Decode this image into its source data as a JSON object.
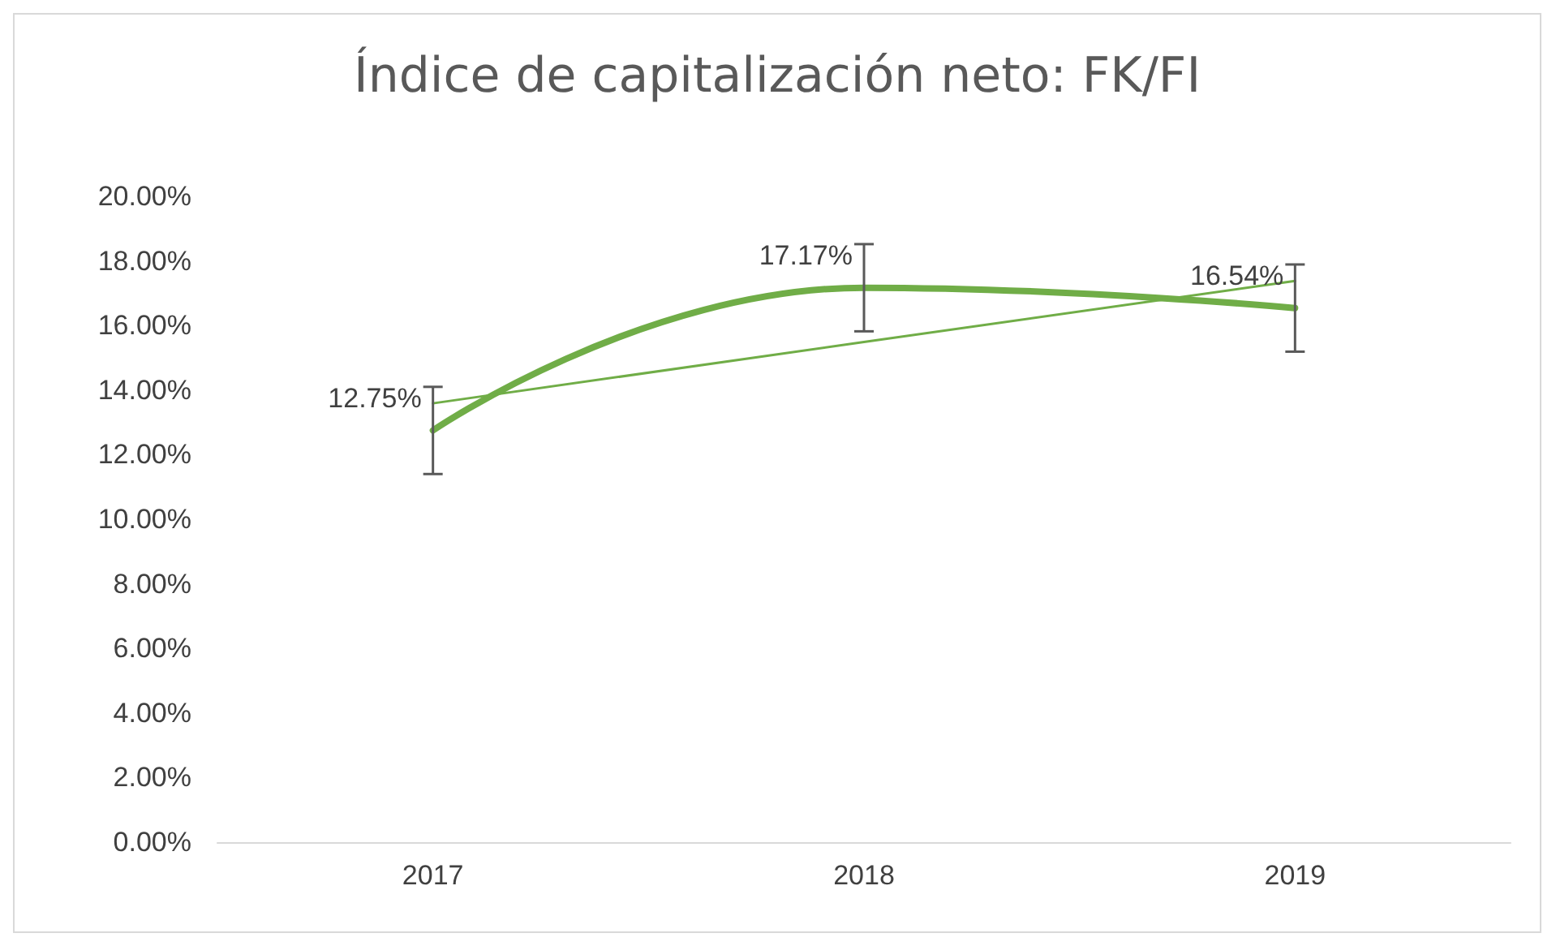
{
  "chart_data": {
    "type": "line",
    "title": "Índice de capitalización neto: FK/FI",
    "categories": [
      "2017",
      "2018",
      "2019"
    ],
    "series": [
      {
        "values": [
          12.75,
          17.17,
          16.54
        ],
        "color": "#70ad47",
        "errors": [
          1.35,
          1.35,
          1.35
        ],
        "value_labels": [
          "12.75%",
          "17.17%",
          "16.54%"
        ]
      },
      {
        "type": "line",
        "values": [
          13.59,
          15.49,
          17.38
        ],
        "color": "#70ad47"
      }
    ],
    "ylim": [
      0,
      20
    ],
    "yticks": [
      {
        "value": 0,
        "label": "0.00%"
      },
      {
        "value": 2,
        "label": "2.00%"
      },
      {
        "value": 4,
        "label": "4.00%"
      },
      {
        "value": 6,
        "label": "6.00%"
      },
      {
        "value": 8,
        "label": "8.00%"
      },
      {
        "value": 10,
        "label": "10.00%"
      },
      {
        "value": 12,
        "label": "12.00%"
      },
      {
        "value": 14,
        "label": "14.00%"
      },
      {
        "value": 16,
        "label": "16.00%"
      },
      {
        "value": 18,
        "label": "18.00%"
      },
      {
        "value": 20,
        "label": "20.00%"
      }
    ],
    "grid": false,
    "marker": "none"
  }
}
